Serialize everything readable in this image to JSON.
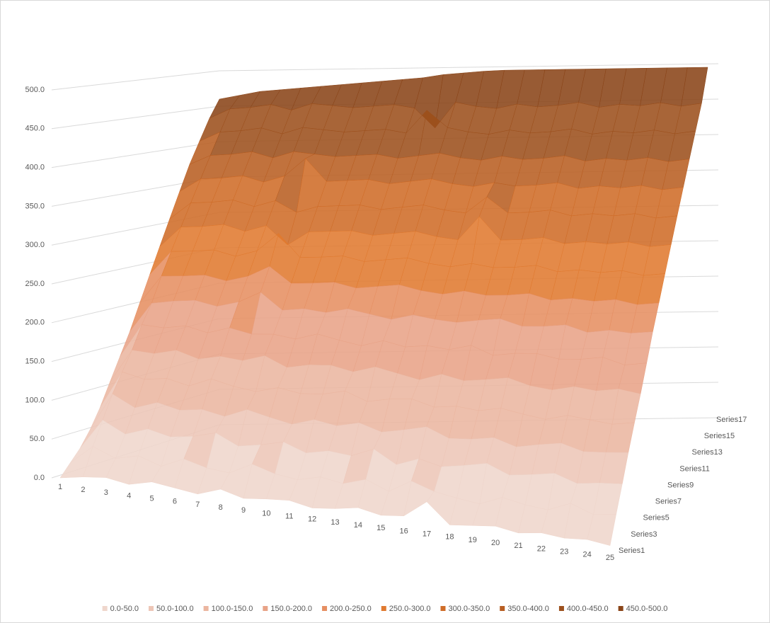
{
  "chart_data": {
    "type": "surface",
    "categories": [
      "1",
      "2",
      "3",
      "4",
      "5",
      "6",
      "7",
      "8",
      "9",
      "10",
      "11",
      "12",
      "13",
      "14",
      "15",
      "16",
      "17",
      "18",
      "19",
      "20",
      "21",
      "22",
      "23",
      "24",
      "25"
    ],
    "series": [
      {
        "name": "Series1",
        "values": [
          0,
          5,
          8,
          3,
          10,
          6,
          2,
          12,
          4,
          7,
          9,
          3,
          6,
          11,
          5,
          8,
          30,
          4,
          7,
          10,
          5,
          9,
          6,
          8,
          4
        ]
      },
      {
        "name": null,
        "values": [
          15,
          40,
          28,
          35,
          25,
          38,
          30,
          27,
          42,
          33,
          29,
          36,
          31,
          40,
          28,
          45,
          35,
          30,
          26,
          38,
          32,
          29,
          41,
          30,
          34
        ]
      },
      {
        "name": "Series3",
        "values": [
          30,
          70,
          55,
          65,
          58,
          62,
          70,
          56,
          61,
          68,
          57,
          63,
          60,
          72,
          55,
          66,
          59,
          64,
          70,
          58,
          62,
          67,
          57,
          61,
          63
        ]
      },
      {
        "name": null,
        "values": [
          50,
          100,
          85,
          95,
          88,
          92,
          86,
          98,
          91,
          85,
          94,
          89,
          96,
          87,
          93,
          100,
          88,
          90,
          95,
          86,
          92,
          97,
          89,
          91,
          94
        ]
      },
      {
        "name": "Series5",
        "values": [
          75,
          125,
          118,
          122,
          115,
          127,
          120,
          116,
          124,
          119,
          121,
          128,
          117,
          123,
          126,
          118,
          122,
          119,
          125,
          120,
          116,
          124,
          121,
          118,
          123
        ]
      },
      {
        "name": null,
        "values": [
          105,
          150,
          148,
          155,
          146,
          152,
          149,
          158,
          145,
          151,
          153,
          147,
          156,
          150,
          144,
          154,
          148,
          152,
          157,
          149,
          146,
          153,
          150,
          155,
          151
        ]
      },
      {
        "name": "Series7",
        "values": [
          135,
          180,
          178,
          183,
          176,
          185,
          179,
          181,
          177,
          186,
          180,
          175,
          184,
          178,
          182,
          179,
          187,
          176,
          181,
          183,
          178,
          180,
          185,
          177,
          182
        ]
      },
      {
        "name": null,
        "values": [
          165,
          205,
          210,
          213,
          207,
          215,
          230,
          208,
          212,
          209,
          216,
          211,
          206,
          214,
          210,
          208,
          213,
          217,
          209,
          211,
          215,
          207,
          212,
          210,
          214
        ]
      },
      {
        "name": "Series9",
        "values": [
          200,
          238,
          240,
          243,
          237,
          245,
          260,
          239,
          241,
          244,
          238,
          242,
          246,
          240,
          237,
          243,
          239,
          241,
          245,
          238,
          242,
          240,
          244,
          239,
          243
        ]
      },
      {
        "name": null,
        "values": [
          235,
          268,
          270,
          273,
          266,
          275,
          300,
          269,
          271,
          274,
          268,
          272,
          276,
          270,
          267,
          273,
          269,
          271,
          275,
          268,
          272,
          270,
          274,
          269,
          273
        ]
      },
      {
        "name": "Series11",
        "values": [
          270,
          298,
          300,
          304,
          296,
          305,
          280,
          299,
          301,
          303,
          298,
          302,
          306,
          300,
          297,
          330,
          299,
          301,
          305,
          298,
          302,
          300,
          304,
          299,
          303
        ]
      },
      {
        "name": null,
        "values": [
          305,
          328,
          330,
          334,
          326,
          335,
          320,
          329,
          331,
          333,
          328,
          332,
          336,
          330,
          327,
          350,
          329,
          331,
          335,
          328,
          332,
          330,
          334,
          329,
          333
        ]
      },
      {
        "name": "Series13",
        "values": [
          340,
          358,
          360,
          364,
          356,
          365,
          390,
          359,
          361,
          363,
          358,
          362,
          366,
          360,
          357,
          363,
          359,
          361,
          365,
          358,
          362,
          360,
          364,
          359,
          363
        ]
      },
      {
        "name": null,
        "values": [
          375,
          388,
          390,
          394,
          386,
          395,
          392,
          389,
          391,
          393,
          388,
          392,
          396,
          390,
          387,
          393,
          389,
          391,
          395,
          388,
          392,
          390,
          394,
          389,
          393
        ]
      },
      {
        "name": "Series15",
        "values": [
          405,
          418,
          420,
          424,
          416,
          425,
          422,
          419,
          421,
          423,
          418,
          450,
          426,
          420,
          417,
          423,
          419,
          421,
          425,
          418,
          422,
          420,
          424,
          419,
          423
        ]
      },
      {
        "name": null,
        "values": [
          435,
          448,
          450,
          454,
          446,
          455,
          452,
          449,
          451,
          453,
          448,
          420,
          456,
          450,
          447,
          453,
          449,
          451,
          455,
          448,
          452,
          450,
          454,
          449,
          453
        ]
      },
      {
        "name": "Series17",
        "values": [
          460,
          465,
          470,
          472,
          474,
          476,
          478,
          480,
          482,
          484,
          486,
          490,
          492,
          494,
          495,
          495,
          495,
          495,
          495,
          495,
          495,
          495,
          495,
          495,
          495
        ]
      }
    ],
    "ylim": [
      0,
      500
    ],
    "yticks": [
      {
        "value": 0,
        "label": "0.0"
      },
      {
        "value": 50,
        "label": "50.0"
      },
      {
        "value": 100,
        "label": "100.0"
      },
      {
        "value": 150,
        "label": "150.0"
      },
      {
        "value": 200,
        "label": "200.0"
      },
      {
        "value": 250,
        "label": "250.0"
      },
      {
        "value": 300,
        "label": "300.0"
      },
      {
        "value": 350,
        "label": "350.0"
      },
      {
        "value": 400,
        "label": "400.0"
      },
      {
        "value": 450,
        "label": "450.0"
      },
      {
        "value": 500,
        "label": "500.0"
      }
    ],
    "grid": true,
    "legend_position": "bottom",
    "legend": [
      {
        "label": "0.0-50.0",
        "color": "#efd6cc"
      },
      {
        "label": "50.0-100.0",
        "color": "#edc6b7"
      },
      {
        "label": "100.0-150.0",
        "color": "#ebb6a0"
      },
      {
        "label": "150.0-200.0",
        "color": "#e8a387"
      },
      {
        "label": "200.0-250.0",
        "color": "#e68f62"
      },
      {
        "label": "250.0-300.0",
        "color": "#e07a30"
      },
      {
        "label": "300.0-350.0",
        "color": "#cf6c28"
      },
      {
        "label": "350.0-400.0",
        "color": "#b85e22"
      },
      {
        "label": "400.0-450.0",
        "color": "#9c501d"
      },
      {
        "label": "450.0-500.0",
        "color": "#8a4418"
      }
    ]
  }
}
